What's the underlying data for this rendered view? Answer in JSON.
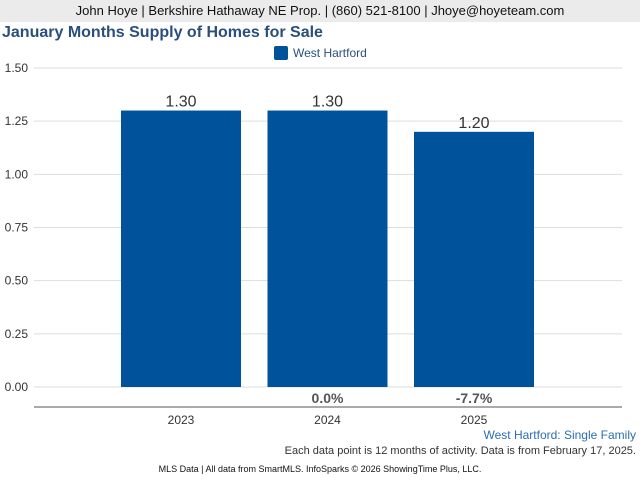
{
  "header": {
    "banner": "John Hoye | Berkshire Hathaway NE Prop. | (860) 521-8100 | Jhoye@hoyeteam.com"
  },
  "chart_data": {
    "type": "bar",
    "title": "January Months Supply of Homes for Sale",
    "categories": [
      "2023",
      "2024",
      "2025"
    ],
    "series": [
      {
        "name": "West Hartford",
        "values": [
          1.3,
          1.3,
          1.2
        ],
        "value_labels": [
          "1.30",
          "1.30",
          "1.20"
        ],
        "change_labels": [
          "",
          "0.0%",
          "-7.7%"
        ],
        "color": "#00529b"
      }
    ],
    "ylim": [
      0,
      1.5
    ],
    "yticks": [
      "0.00",
      "0.25",
      "0.50",
      "0.75",
      "1.00",
      "1.25",
      "1.50"
    ],
    "grid": true,
    "legend": "top-center"
  },
  "footer": {
    "series_label": "West Hartford: Single Family",
    "note": "Each data point is 12 months of activity. Data is from February 17, 2025.",
    "source": "MLS Data | All data from SmartMLS. InfoSparks © 2026 ShowingTime Plus, LLC."
  }
}
